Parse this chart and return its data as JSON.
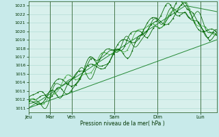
{
  "title": "",
  "xlabel": "Pression niveau de la mer( hPa )",
  "bg_color": "#c8eaea",
  "grid_color": "#a8d8d0",
  "plot_area_bg": "#d8f0ec",
  "x_labels": [
    "Jeu",
    "Mar",
    "Ven",
    "Sam",
    "Dim",
    "Lun"
  ],
  "x_ticks": [
    0,
    24,
    48,
    96,
    144,
    192
  ],
  "x_max": 210,
  "ylim": [
    1010.5,
    1023.5
  ],
  "yticks": [
    1011,
    1012,
    1013,
    1014,
    1015,
    1016,
    1017,
    1018,
    1019,
    1020,
    1021,
    1022,
    1023
  ],
  "line_color_main": "#006600",
  "line_color_light": "#44aa44",
  "line_color_thin": "#228833"
}
